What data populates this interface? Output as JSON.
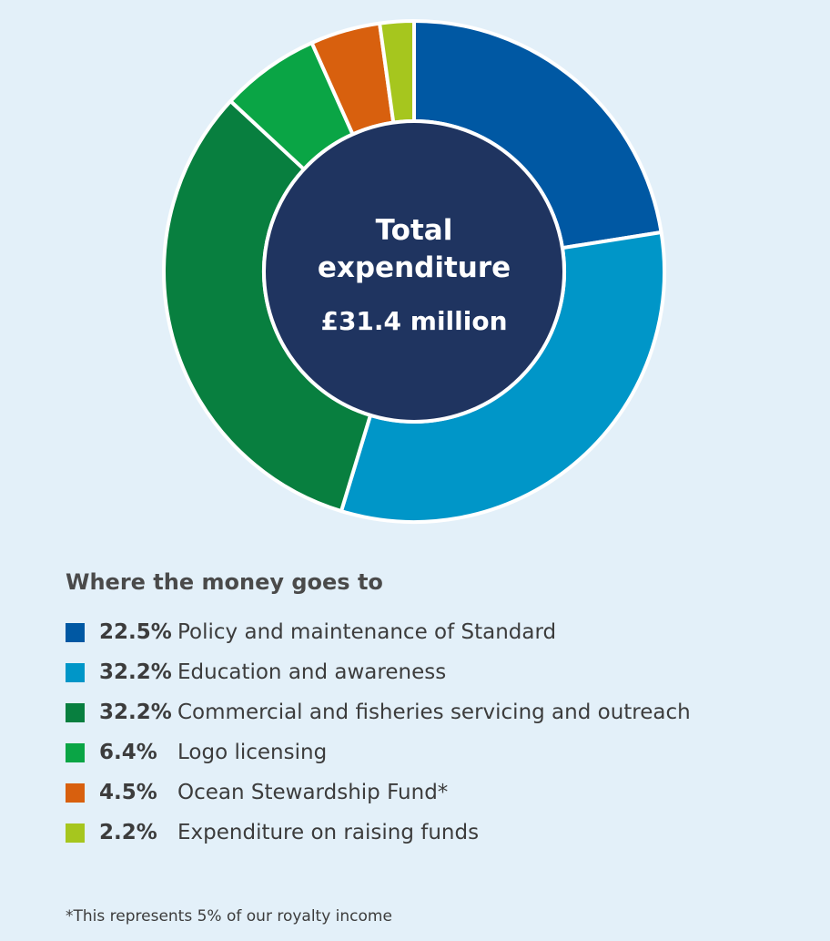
{
  "chart_data": {
    "type": "pie",
    "variant": "donut",
    "center_label": {
      "line1": "Total",
      "line2": "expenditure",
      "value": "£31.4 million"
    },
    "legend_title": "Where the money goes to",
    "slices": [
      {
        "value": 22.5,
        "value_label": "22.5%",
        "label": "Policy and maintenance of Standard",
        "color": "#0058a3"
      },
      {
        "value": 32.2,
        "value_label": "32.2%",
        "label": "Education and awareness",
        "color": "#0096c8"
      },
      {
        "value": 32.2,
        "value_label": "32.2%",
        "label": "Commercial and fisheries servicing and outreach",
        "color": "#087f3f"
      },
      {
        "value": 6.4,
        "value_label": "6.4%",
        "label": "Logo licensing",
        "color": "#0aa545"
      },
      {
        "value": 4.5,
        "value_label": "4.5%",
        "label": "Ocean Stewardship Fund*",
        "color": "#d8600e"
      },
      {
        "value": 2.2,
        "value_label": "2.2%",
        "label": "Expenditure on raising funds",
        "color": "#a6c61e"
      }
    ],
    "center_color": "#1f3460",
    "footnote": "*This represents 5% of our royalty income"
  }
}
